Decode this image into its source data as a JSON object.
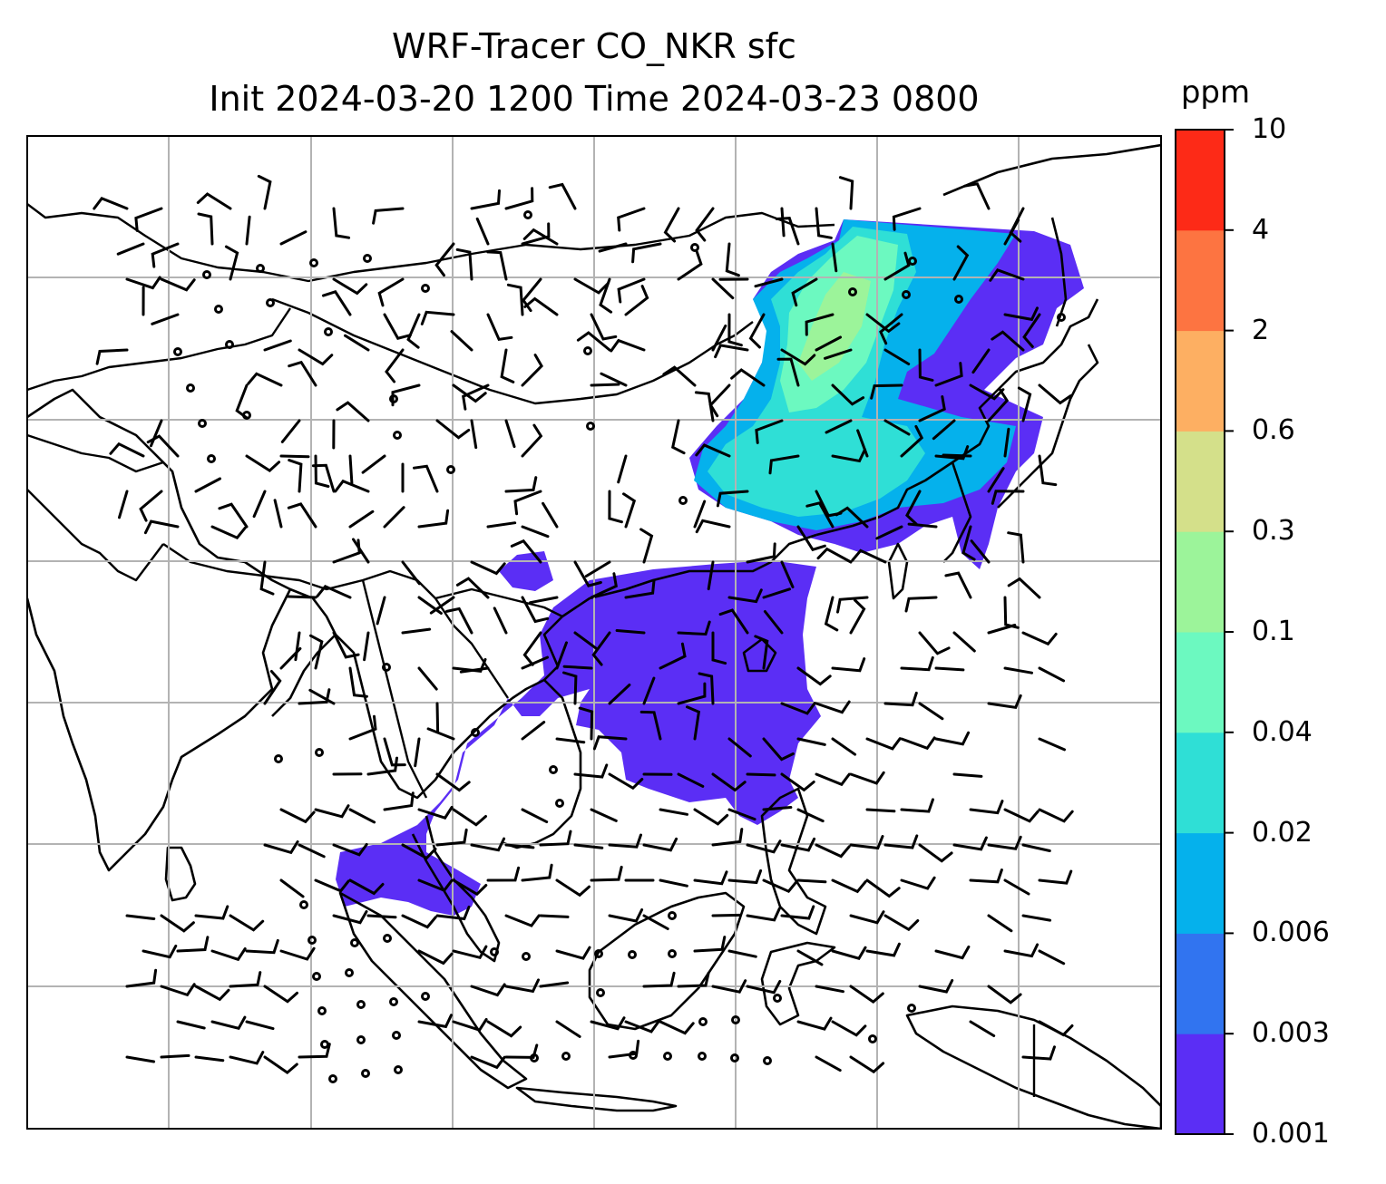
{
  "title": {
    "line1": "WRF-Tracer CO_NKR sfc",
    "line2": "Init 2024-03-20 1200 Time 2024-03-23 0800"
  },
  "colorbar": {
    "unit": "ppm",
    "levels": [
      "0.001",
      "0.003",
      "0.006",
      "0.02",
      "0.04",
      "0.1",
      "0.3",
      "0.6",
      "2",
      "4",
      "10"
    ],
    "colors": [
      "#5b2ef5",
      "#3174f0",
      "#05b1ec",
      "#2fdfd6",
      "#6cf9c0",
      "#9cf49a",
      "#d4e08a",
      "#fdaf62",
      "#fd7441",
      "#fd2a17"
    ]
  },
  "map": {
    "grid": "on",
    "features": [
      "coastlines",
      "country borders",
      "wind barbs",
      "calm-wind circles",
      "tracer concentration filled contours"
    ]
  }
}
